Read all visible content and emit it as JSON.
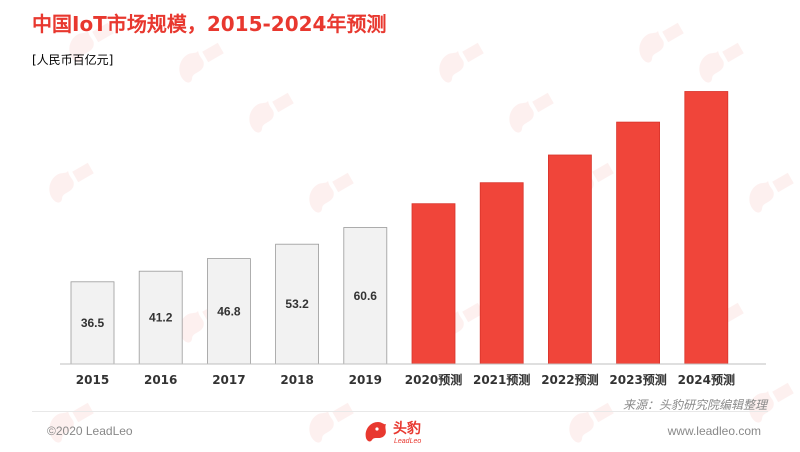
{
  "title": "中国IoT市场规模，2015-2024年预测",
  "unit": "[人民币百亿元]",
  "source": "来源：头豹研究院编辑整理",
  "copyright": "©2020 LeadLeo",
  "website": "www.leadleo.com",
  "logo": {
    "cn": "头豹",
    "en": "LeadLeo"
  },
  "colors": {
    "accent": "#e8382f",
    "actual_bar": "#f2f2f2",
    "forecast_bar": "#f0453a"
  },
  "chart_data": {
    "type": "bar",
    "categories": [
      "2015",
      "2016",
      "2017",
      "2018",
      "2019",
      "2020预测",
      "2021预测",
      "2022预测",
      "2023预测",
      "2024预测"
    ],
    "values": [
      36.5,
      41.2,
      46.8,
      53.2,
      60.6,
      71.2,
      80.5,
      92.8,
      107.4,
      121.0
    ],
    "value_labels": [
      "36.5",
      "41.2",
      "46.8",
      "53.2",
      "60.6",
      "",
      "",
      "",
      "",
      ""
    ],
    "series_style": [
      "actual",
      "actual",
      "actual",
      "actual",
      "actual",
      "forecast",
      "forecast",
      "forecast",
      "forecast",
      "forecast"
    ],
    "ylim": [
      0,
      127
    ]
  }
}
